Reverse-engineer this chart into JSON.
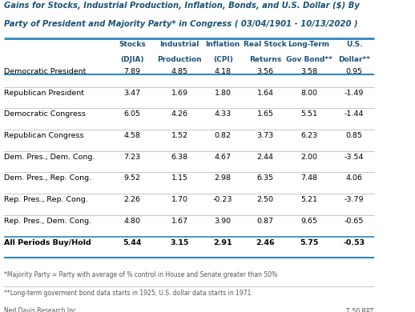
{
  "title_line1": "Gains for Stocks, Industrial Production, Inflation, Bonds, and U.S. Dollar ($) By",
  "title_line2": "Party of President and Majority Party* in Congress ( 03/04/1901 - 10/13/2020 )",
  "col_headers": [
    [
      "Stocks",
      "(DJIA)"
    ],
    [
      "Industrial",
      "Production"
    ],
    [
      "Inflation",
      "(CPI)"
    ],
    [
      "Real Stock",
      "Returns"
    ],
    [
      "Long-Term",
      "Gov Bond**"
    ],
    [
      "U.S.",
      "Dollar**"
    ]
  ],
  "rows": [
    {
      "label": "Democratic President",
      "values": [
        "7.89",
        "4.85",
        "4.18",
        "3.56",
        "3.58",
        "0.95"
      ],
      "bold": false
    },
    {
      "label": "Republican President",
      "values": [
        "3.47",
        "1.69",
        "1.80",
        "1.64",
        "8.00",
        "-1.49"
      ],
      "bold": false
    },
    {
      "label": "Democratic Congress",
      "values": [
        "6.05",
        "4.26",
        "4.33",
        "1.65",
        "5.51",
        "-1.44"
      ],
      "bold": false
    },
    {
      "label": "Republican Congress",
      "values": [
        "4.58",
        "1.52",
        "0.82",
        "3.73",
        "6.23",
        "0.85"
      ],
      "bold": false
    },
    {
      "label": "Dem. Pres., Dem. Cong.",
      "values": [
        "7.23",
        "6.38",
        "4.67",
        "2.44",
        "2.00",
        "-3.54"
      ],
      "bold": false
    },
    {
      "label": "Dem. Pres., Rep. Cong.",
      "values": [
        "9.52",
        "1.15",
        "2.98",
        "6.35",
        "7.48",
        "4.06"
      ],
      "bold": false
    },
    {
      "label": "Rep. Pres., Rep. Cong.",
      "values": [
        "2.26",
        "1.70",
        "-0.23",
        "2.50",
        "5.21",
        "-3.79"
      ],
      "bold": false
    },
    {
      "label": "Rep. Pres., Dem. Cong.",
      "values": [
        "4.80",
        "1.67",
        "3.90",
        "0.87",
        "9.65",
        "-0.65"
      ],
      "bold": false
    },
    {
      "label": "All Periods Buy/Hold",
      "values": [
        "5.44",
        "3.15",
        "2.91",
        "2.46",
        "5.75",
        "-0.53"
      ],
      "bold": true
    }
  ],
  "footnote1": "*Majority Party = Party with average of % control in House and Senate greater than 50%",
  "footnote2": "**Long-term goverment bond data starts in 1925, U.S. dollar data starts in 1971.",
  "source_left": "Ned Davis Research Inc.",
  "source_right": "T_50.RPT",
  "title_color": "#1a5276",
  "header_color": "#1a5276",
  "border_color": "#2e86c1",
  "row_line_color": "#aab7b8",
  "bg_color": "#ffffff",
  "footnote_color": "#555555",
  "source_color": "#555555"
}
